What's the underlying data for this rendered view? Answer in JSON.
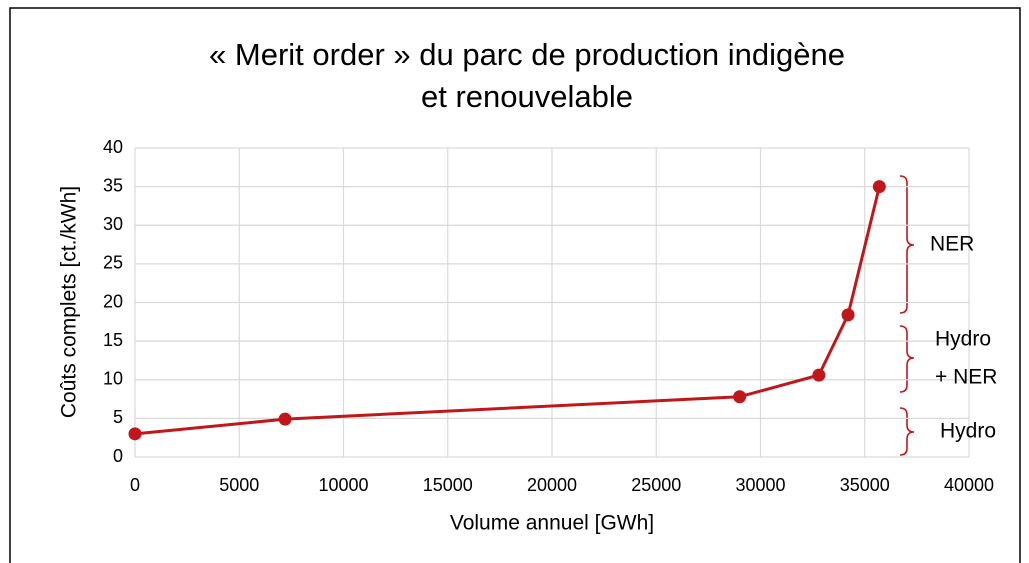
{
  "chart_data": {
    "type": "line",
    "title": [
      "« Merit order » du parc de production indigène",
      "et renouvelable"
    ],
    "x_label": "Volume annuel [GWh]",
    "y_label": "Coûts complets [ct./kWh]",
    "x": [
      0,
      7200,
      29000,
      32800,
      34200,
      35700
    ],
    "series": [
      {
        "color": "#c0171b",
        "values": [
          3.0,
          4.9,
          7.8,
          10.6,
          18.4,
          35
        ]
      }
    ],
    "xlim": [
      0,
      40000
    ],
    "xticks": [
      0,
      5000,
      10000,
      15000,
      20000,
      25000,
      30000,
      35000,
      40000
    ],
    "ylim": [
      0,
      40
    ],
    "yticks": [
      0,
      5,
      10,
      15,
      20,
      25,
      30,
      35,
      40
    ],
    "grid": true,
    "annotations": [
      [
        "NER"
      ],
      [
        "Hydro",
        "+ NER"
      ],
      [
        "Hydro"
      ]
    ]
  }
}
